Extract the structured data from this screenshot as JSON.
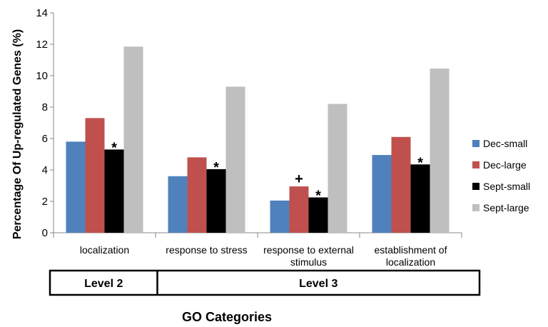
{
  "chart_data": {
    "type": "bar",
    "ylabel": "Percentage Of Up-regulated Genes (%)",
    "xlabel": "GO Categories",
    "ylim": [
      0,
      14
    ],
    "yticks": [
      "0",
      "2",
      "4",
      "6",
      "8",
      "10",
      "12",
      "14"
    ],
    "categories": [
      [
        "localization"
      ],
      [
        "response to stress"
      ],
      [
        "response to external",
        "stimulus"
      ],
      [
        "establishment of",
        "localization"
      ]
    ],
    "series": [
      {
        "name": "Dec-small",
        "color": "#4f81bd",
        "values": [
          5.8,
          3.6,
          2.05,
          4.95
        ]
      },
      {
        "name": "Dec-large",
        "color": "#c0504d",
        "values": [
          7.3,
          4.8,
          2.95,
          6.1
        ]
      },
      {
        "name": "Sept-small",
        "color": "#000000",
        "values": [
          5.3,
          4.05,
          2.25,
          4.35
        ]
      },
      {
        "name": "Sept-large",
        "color": "#bfbfbf",
        "values": [
          11.85,
          9.3,
          8.2,
          10.45
        ]
      }
    ],
    "annotations": [
      {
        "category": 0,
        "series": 2,
        "text": "*"
      },
      {
        "category": 1,
        "series": 2,
        "text": "*"
      },
      {
        "category": 2,
        "series": 1,
        "text": "+"
      },
      {
        "category": 2,
        "series": 2,
        "text": "*"
      },
      {
        "category": 3,
        "series": 2,
        "text": "*"
      }
    ],
    "levels": [
      {
        "label": "Level 2",
        "span": 1
      },
      {
        "label": "Level 3",
        "span": 3
      }
    ],
    "legend_position": "right"
  }
}
